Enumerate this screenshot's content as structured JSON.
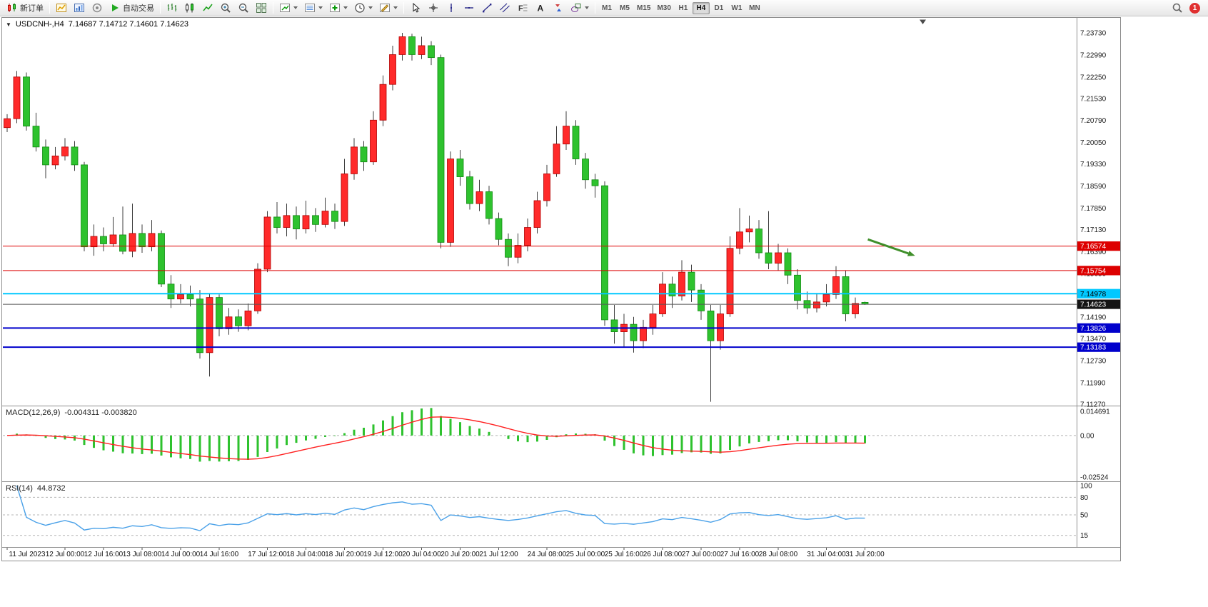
{
  "toolbar": {
    "items": [
      {
        "t": "btn",
        "name": "new-order",
        "icon": "new-order-icon",
        "label": "新订单"
      },
      {
        "t": "sep"
      },
      {
        "t": "btn",
        "name": "new-chart",
        "icon": "new-chart-icon"
      },
      {
        "t": "btn",
        "name": "profiles",
        "icon": "profiles-icon"
      },
      {
        "t": "btn",
        "name": "data-window",
        "icon": "data-window-icon"
      },
      {
        "t": "btn",
        "name": "autotrading",
        "icon": "autotrading-icon",
        "label": "自动交易"
      },
      {
        "t": "sep"
      },
      {
        "t": "btn",
        "name": "bar-chart-mode",
        "icon": "bar-chart-icon"
      },
      {
        "t": "btn",
        "name": "candlestick-mode",
        "icon": "candles-icon"
      },
      {
        "t": "btn",
        "name": "line-chart-mode",
        "icon": "line-chart-icon"
      },
      {
        "t": "btn",
        "name": "zoom-in",
        "icon": "zoom-in-icon"
      },
      {
        "t": "btn",
        "name": "zoom-out",
        "icon": "zoom-out-icon"
      },
      {
        "t": "btn",
        "name": "tile-windows",
        "icon": "tile-windows-icon"
      },
      {
        "t": "sep"
      },
      {
        "t": "btn",
        "name": "new-chart-window",
        "icon": "chart-arrow-icon",
        "dd": true
      },
      {
        "t": "btn",
        "name": "chart-profiles",
        "icon": "chart-list-icon",
        "dd": true
      },
      {
        "t": "btn",
        "name": "indicators",
        "icon": "indicators-icon",
        "dd": true
      },
      {
        "t": "btn",
        "name": "periods",
        "icon": "periods-icon",
        "dd": true
      },
      {
        "t": "btn",
        "name": "templates",
        "icon": "templates-icon",
        "dd": true
      },
      {
        "t": "sep"
      },
      {
        "t": "btn",
        "name": "cursor-tool",
        "icon": "cursor-icon"
      },
      {
        "t": "btn",
        "name": "crosshair-tool",
        "icon": "crosshair-icon"
      },
      {
        "t": "btn",
        "name": "vertical-line-tool",
        "icon": "vline-icon"
      },
      {
        "t": "btn",
        "name": "horizontal-line-tool",
        "icon": "hline-icon"
      },
      {
        "t": "btn",
        "name": "trendline-tool",
        "icon": "trendline-icon"
      },
      {
        "t": "btn",
        "name": "channel-tool",
        "icon": "channel-icon"
      },
      {
        "t": "btn",
        "name": "fibonacci-tool",
        "icon": "fibo-icon"
      },
      {
        "t": "btn",
        "name": "text-tool",
        "icon": "text-icon"
      },
      {
        "t": "btn",
        "name": "arrows-tool",
        "icon": "arrows-icon"
      },
      {
        "t": "btn",
        "name": "shapes-tool",
        "icon": "shapes-icon",
        "dd": true
      },
      {
        "t": "sep"
      },
      {
        "t": "tf",
        "label": "M1"
      },
      {
        "t": "tf",
        "label": "M5"
      },
      {
        "t": "tf",
        "label": "M15"
      },
      {
        "t": "tf",
        "label": "M30"
      },
      {
        "t": "tf",
        "label": "H1"
      },
      {
        "t": "tf",
        "label": "H4",
        "active": true
      },
      {
        "t": "tf",
        "label": "D1"
      },
      {
        "t": "tf",
        "label": "W1"
      },
      {
        "t": "tf",
        "label": "MN"
      },
      {
        "t": "spacer"
      },
      {
        "t": "btn",
        "name": "search",
        "icon": "search-icon"
      },
      {
        "t": "badge",
        "name": "notifications",
        "label": "1",
        "color": "#e03030"
      }
    ]
  },
  "chart": {
    "header": {
      "expander": "▼",
      "symbol_period": "USDCNH-,H4",
      "ohlc": "7.14687 7.14712 7.14601 7.14623"
    },
    "colors": {
      "up": "#ff2a2a",
      "up_border": "#b00000",
      "down": "#2ec22e",
      "down_border": "#0f8a0f",
      "wick": "#3c3c3c",
      "frame": "#8e8e8e",
      "axis_text": "#1a1a1a"
    },
    "price_axis_ticks": [
      "7.23730",
      "7.22990",
      "7.22250",
      "7.21530",
      "7.20790",
      "7.20050",
      "7.19330",
      "7.18590",
      "7.17850",
      "7.17130",
      "7.16390",
      "7.15650",
      "7.14910",
      "7.14190",
      "7.13470",
      "7.12730",
      "7.11990",
      "7.11270"
    ],
    "hlines": [
      {
        "price": 7.16574,
        "label": "7.16574",
        "color": "#dd0000",
        "width": 1,
        "text_color": "#ffffff"
      },
      {
        "price": 7.15754,
        "label": "7.15754",
        "color": "#dd0000",
        "width": 1,
        "text_color": "#ffffff"
      },
      {
        "price": 7.14978,
        "label": "7.14978",
        "color": "#00c8ff",
        "width": 2,
        "text_color": "#000000"
      },
      {
        "price": 7.13826,
        "label": "7.13826",
        "color": "#0000cc",
        "width": 2,
        "text_color": "#ffffff"
      },
      {
        "price": 7.13183,
        "label": "7.13183",
        "color": "#0000cc",
        "width": 2,
        "text_color": "#ffffff"
      }
    ],
    "current_price": {
      "value": 7.14623,
      "label": "7.14623",
      "line_color": "#555555",
      "label_bg": "#141414",
      "text_color": "#ffffff"
    },
    "arrow": {
      "from_bar": 89.3,
      "from_price": 7.168,
      "to_bar": 94.2,
      "to_price": 7.1625,
      "color": "#3f8f2a"
    },
    "shift_marker_bar": 95
  },
  "chart_data": {
    "type": "candlestick",
    "symbol": "USDCNH-",
    "timeframe": "H4",
    "ylim": [
      7.1127,
      7.2373
    ],
    "x_labels": [
      [
        0,
        "11 Jul 2023"
      ],
      [
        6,
        "12 Jul 00:00"
      ],
      [
        10,
        "12 Jul 16:00"
      ],
      [
        14,
        "13 Jul 08:00"
      ],
      [
        18,
        "14 Jul 00:00"
      ],
      [
        22,
        "14 Jul 16:00"
      ],
      [
        27,
        "17 Jul 12:00"
      ],
      [
        31,
        "18 Jul 04:00"
      ],
      [
        35,
        "18 Jul 20:00"
      ],
      [
        39,
        "19 Jul 12:00"
      ],
      [
        43,
        "20 Jul 04:00"
      ],
      [
        47,
        "20 Jul 20:00"
      ],
      [
        51,
        "21 Jul 12:00"
      ],
      [
        56,
        "24 Jul 08:00"
      ],
      [
        60,
        "25 Jul 00:00"
      ],
      [
        64,
        "25 Jul 16:00"
      ],
      [
        68,
        "26 Jul 08:00"
      ],
      [
        72,
        "27 Jul 00:00"
      ],
      [
        76,
        "27 Jul 16:00"
      ],
      [
        80,
        "28 Jul 08:00"
      ],
      [
        85,
        "31 Jul 04:00"
      ],
      [
        89,
        "31 Jul 20:00"
      ]
    ],
    "ohlc": [
      [
        7.2055,
        7.21,
        7.204,
        7.2085
      ],
      [
        7.2085,
        7.2245,
        7.207,
        7.2225
      ],
      [
        7.2225,
        7.224,
        7.2045,
        7.206
      ],
      [
        7.206,
        7.2105,
        7.1975,
        7.199
      ],
      [
        7.199,
        7.2015,
        7.1885,
        7.193
      ],
      [
        7.193,
        7.199,
        7.1915,
        7.196
      ],
      [
        7.196,
        7.202,
        7.1945,
        7.199
      ],
      [
        7.199,
        7.201,
        7.191,
        7.193
      ],
      [
        7.193,
        7.194,
        7.164,
        7.1655
      ],
      [
        7.1655,
        7.173,
        7.1625,
        7.169
      ],
      [
        7.169,
        7.172,
        7.164,
        7.1665
      ],
      [
        7.1665,
        7.1755,
        7.1655,
        7.1695
      ],
      [
        7.1695,
        7.179,
        7.163,
        7.164
      ],
      [
        7.164,
        7.18,
        7.162,
        7.17
      ],
      [
        7.17,
        7.173,
        7.1635,
        7.1655
      ],
      [
        7.1655,
        7.1745,
        7.164,
        7.17
      ],
      [
        7.17,
        7.171,
        7.152,
        7.153
      ],
      [
        7.153,
        7.156,
        7.145,
        7.148
      ],
      [
        7.148,
        7.153,
        7.1465,
        7.1495
      ],
      [
        7.1495,
        7.1525,
        7.1455,
        7.148
      ],
      [
        7.148,
        7.151,
        7.128,
        7.13
      ],
      [
        7.13,
        7.15,
        7.122,
        7.1485
      ],
      [
        7.1485,
        7.1495,
        7.1355,
        7.138
      ],
      [
        7.138,
        7.145,
        7.136,
        7.142
      ],
      [
        7.142,
        7.1445,
        7.137,
        7.139
      ],
      [
        7.139,
        7.1465,
        7.1375,
        7.144
      ],
      [
        7.144,
        7.16,
        7.143,
        7.158
      ],
      [
        7.158,
        7.1775,
        7.157,
        7.1755
      ],
      [
        7.1755,
        7.1805,
        7.17,
        7.172
      ],
      [
        7.172,
        7.18,
        7.169,
        7.176
      ],
      [
        7.176,
        7.179,
        7.168,
        7.1715
      ],
      [
        7.1715,
        7.181,
        7.17,
        7.176
      ],
      [
        7.176,
        7.1785,
        7.1705,
        7.173
      ],
      [
        7.173,
        7.182,
        7.172,
        7.1775
      ],
      [
        7.1775,
        7.18,
        7.1715,
        7.174
      ],
      [
        7.174,
        7.195,
        7.1725,
        7.19
      ],
      [
        7.19,
        7.202,
        7.188,
        7.199
      ],
      [
        7.199,
        7.201,
        7.191,
        7.194
      ],
      [
        7.194,
        7.211,
        7.193,
        7.208
      ],
      [
        7.208,
        7.223,
        7.206,
        7.22
      ],
      [
        7.22,
        7.233,
        7.218,
        7.23
      ],
      [
        7.23,
        7.2373,
        7.228,
        7.236
      ],
      [
        7.236,
        7.237,
        7.228,
        7.23
      ],
      [
        7.23,
        7.236,
        7.2285,
        7.233
      ],
      [
        7.233,
        7.2345,
        7.2265,
        7.229
      ],
      [
        7.229,
        7.23,
        7.165,
        7.167
      ],
      [
        7.167,
        7.1975,
        7.1655,
        7.195
      ],
      [
        7.195,
        7.198,
        7.186,
        7.189
      ],
      [
        7.189,
        7.191,
        7.178,
        7.18
      ],
      [
        7.18,
        7.188,
        7.1775,
        7.184
      ],
      [
        7.184,
        7.186,
        7.173,
        7.175
      ],
      [
        7.175,
        7.177,
        7.166,
        7.168
      ],
      [
        7.168,
        7.17,
        7.159,
        7.162
      ],
      [
        7.162,
        7.17,
        7.16,
        7.166
      ],
      [
        7.166,
        7.175,
        7.164,
        7.172
      ],
      [
        7.172,
        7.184,
        7.17,
        7.181
      ],
      [
        7.181,
        7.193,
        7.179,
        7.19
      ],
      [
        7.19,
        7.206,
        7.189,
        7.2
      ],
      [
        7.2,
        7.211,
        7.198,
        7.206
      ],
      [
        7.206,
        7.208,
        7.193,
        7.195
      ],
      [
        7.195,
        7.197,
        7.185,
        7.188
      ],
      [
        7.188,
        7.19,
        7.182,
        7.186
      ],
      [
        7.186,
        7.1875,
        7.139,
        7.141
      ],
      [
        7.141,
        7.146,
        7.133,
        7.137
      ],
      [
        7.137,
        7.143,
        7.132,
        7.1395
      ],
      [
        7.1395,
        7.142,
        7.13,
        7.134
      ],
      [
        7.134,
        7.141,
        7.1315,
        7.1385
      ],
      [
        7.1385,
        7.146,
        7.136,
        7.143
      ],
      [
        7.143,
        7.157,
        7.142,
        7.153
      ],
      [
        7.153,
        7.1555,
        7.145,
        7.149
      ],
      [
        7.149,
        7.161,
        7.1475,
        7.157
      ],
      [
        7.157,
        7.1595,
        7.147,
        7.151
      ],
      [
        7.151,
        7.153,
        7.141,
        7.144
      ],
      [
        7.144,
        7.146,
        7.1135,
        7.134
      ],
      [
        7.134,
        7.146,
        7.131,
        7.143
      ],
      [
        7.143,
        7.169,
        7.142,
        7.165
      ],
      [
        7.165,
        7.1785,
        7.163,
        7.1705
      ],
      [
        7.1705,
        7.176,
        7.167,
        7.1715
      ],
      [
        7.1715,
        7.1745,
        7.1615,
        7.1635
      ],
      [
        7.1635,
        7.1775,
        7.158,
        7.16
      ],
      [
        7.16,
        7.1665,
        7.1575,
        7.1635
      ],
      [
        7.1635,
        7.165,
        7.153,
        7.156
      ],
      [
        7.156,
        7.158,
        7.1445,
        7.1475
      ],
      [
        7.1475,
        7.1505,
        7.143,
        7.145
      ],
      [
        7.145,
        7.15,
        7.1435,
        7.147
      ],
      [
        7.147,
        7.153,
        7.1455,
        7.1495
      ],
      [
        7.1495,
        7.159,
        7.148,
        7.1555
      ],
      [
        7.1555,
        7.1575,
        7.1405,
        7.143
      ],
      [
        7.143,
        7.1485,
        7.1415,
        7.1465
      ],
      [
        7.14687,
        7.14712,
        7.14601,
        7.14623
      ]
    ],
    "indicators": {
      "macd": {
        "name": "MACD(12,26,9)",
        "values_text": "-0.004311 -0.003820",
        "main_value": "-0.004311",
        "signal_value": "-0.003820",
        "params": [
          12,
          26,
          9
        ],
        "range": [
          -0.02524,
          0.014691
        ],
        "axis_ticks": [
          {
            "v": 0.014691,
            "t": "0.014691"
          },
          {
            "v": 0,
            "t": "0.00"
          },
          {
            "v": -0.02524,
            "t": "-0.02524"
          }
        ],
        "histogram_color": "#2ec22e",
        "signal_color": "#ff2020"
      },
      "rsi": {
        "name": "RSI(14)",
        "value_text": "44.8732",
        "period": 14,
        "range": [
          0,
          100
        ],
        "levels": [
          80,
          50,
          15
        ],
        "axis_ticks": [
          {
            "v": 100,
            "t": "100"
          },
          {
            "v": 80,
            "t": "80"
          },
          {
            "v": 50,
            "t": "50"
          },
          {
            "v": 15,
            "t": "15"
          }
        ],
        "line_color": "#4aa1e8"
      }
    }
  }
}
